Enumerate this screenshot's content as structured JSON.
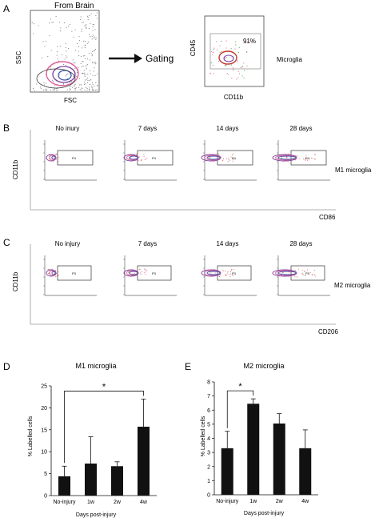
{
  "panel_a": {
    "letter": "A",
    "left_title": "From Brain",
    "left_xlabel": "FSC",
    "left_ylabel": "SSC",
    "arrow_label": "Gating",
    "right_xlabel": "CD11b",
    "right_ylabel": "CD45",
    "gate_percent": "91%",
    "gate_label": "Microglia"
  },
  "panel_b": {
    "letter": "B",
    "ylabel": "CD11b",
    "xlabel": "CD86",
    "side_label": "M1 microglia",
    "gate_label": "P4",
    "timepoints": [
      "No inury",
      "7 days",
      "14 days",
      "28 days"
    ]
  },
  "panel_c": {
    "letter": "C",
    "ylabel": "CD11b",
    "xlabel": "CD206",
    "side_label": "M2 microglia",
    "gate_label": "P3",
    "timepoints": [
      "No injury",
      "7 days",
      "14 days",
      "28 days"
    ]
  },
  "colors": {
    "bar": "#111111",
    "contour_purple": "#7b3fa0",
    "contour_pink": "#e0609a",
    "contour_red": "#c0392b",
    "contour_blue": "#3a52b0",
    "dots_green": "#4caf50"
  },
  "chart_data": [
    {
      "type": "bar",
      "panel": "D",
      "title": "M1 microglia",
      "xlabel": "Days post-injury",
      "ylabel": "% Labelled cells",
      "categories": [
        "No-injury",
        "1w",
        "2w",
        "4w"
      ],
      "values": [
        4.4,
        7.3,
        6.7,
        15.7
      ],
      "errors": [
        2.3,
        6.1,
        1.0,
        6.3
      ],
      "ylim": [
        0,
        25
      ],
      "yticks": [
        0,
        5,
        10,
        15,
        20,
        25
      ],
      "significance": {
        "from": 0,
        "to": 3,
        "label": "*"
      }
    },
    {
      "type": "bar",
      "panel": "E",
      "title": "M2 microglia",
      "xlabel": "Days post-injury",
      "ylabel": "% Labelled cells",
      "categories": [
        "No-injury",
        "1w",
        "2w",
        "4w"
      ],
      "values": [
        3.3,
        6.45,
        5.05,
        3.3
      ],
      "errors": [
        1.2,
        0.35,
        0.7,
        1.3
      ],
      "ylim": [
        0,
        8
      ],
      "yticks": [
        0,
        1,
        2,
        3,
        4,
        5,
        6,
        7,
        8
      ],
      "significance": {
        "from": 0,
        "to": 1,
        "label": "*"
      }
    }
  ]
}
